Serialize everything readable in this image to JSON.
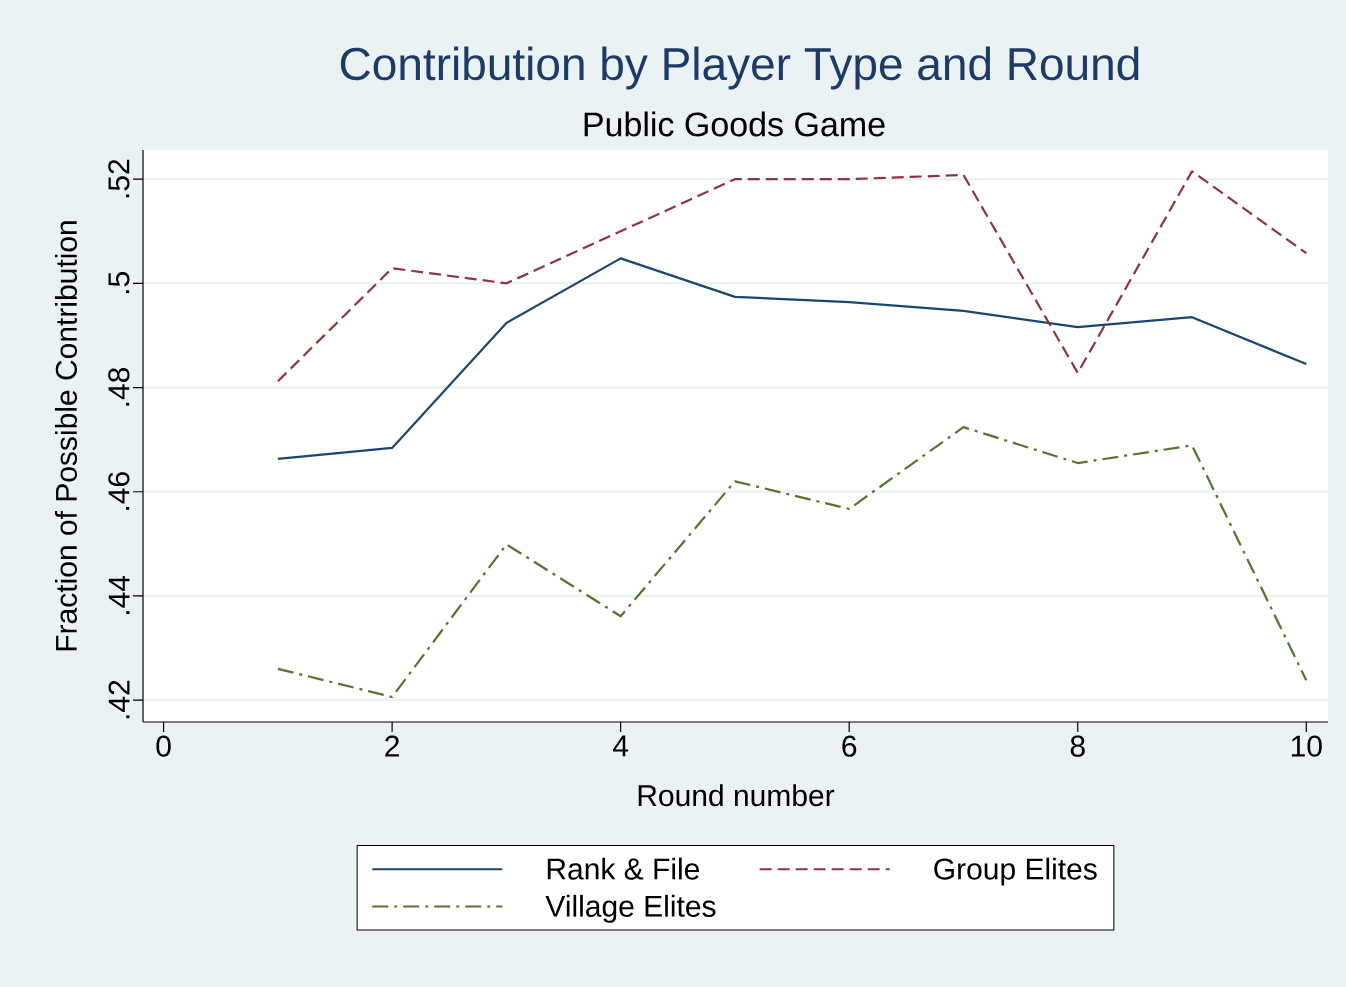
{
  "chart_data": {
    "type": "line",
    "title": "Contribution by Player Type and Round",
    "subtitle": "Public Goods Game",
    "xlabel": "Round number",
    "ylabel": "Fraction of Possible Contribution",
    "x": [
      1,
      2,
      3,
      4,
      5,
      6,
      7,
      8,
      9,
      10
    ],
    "series": [
      {
        "name": "Rank & File",
        "color": "#1a476f",
        "line_style": "solid",
        "values": [
          0.4663,
          0.4684,
          0.4924,
          0.5048,
          0.4974,
          0.4964,
          0.4947,
          0.4916,
          0.4935,
          0.4845
        ]
      },
      {
        "name": "Group Elites",
        "color": "#90353b",
        "line_style": "dashed",
        "values": [
          0.4812,
          0.5029,
          0.5,
          0.51,
          0.52,
          0.52,
          0.5208,
          0.4828,
          0.5215,
          0.5058
        ]
      },
      {
        "name": "Village Elites",
        "color": "#55752f",
        "line_style": "dashdot",
        "values": [
          0.426,
          0.4206,
          0.4499,
          0.4361,
          0.462,
          0.4567,
          0.4724,
          0.4655,
          0.4689,
          0.4238
        ]
      }
    ],
    "xlim": [
      -0.18,
      10.19
    ],
    "ylim": [
      0.4158,
      0.5256
    ],
    "xticks": [
      0,
      2,
      4,
      6,
      8,
      10
    ],
    "yticks": [
      {
        "value": 0.42,
        "label": ".42"
      },
      {
        "value": 0.44,
        "label": ".44"
      },
      {
        "value": 0.46,
        "label": ".46"
      },
      {
        "value": 0.48,
        "label": ".48"
      },
      {
        "value": 0.5,
        "label": ".5"
      },
      {
        "value": 0.52,
        "label": ".52"
      }
    ],
    "grid": "y",
    "legend": "bottom",
    "marker": "none"
  }
}
